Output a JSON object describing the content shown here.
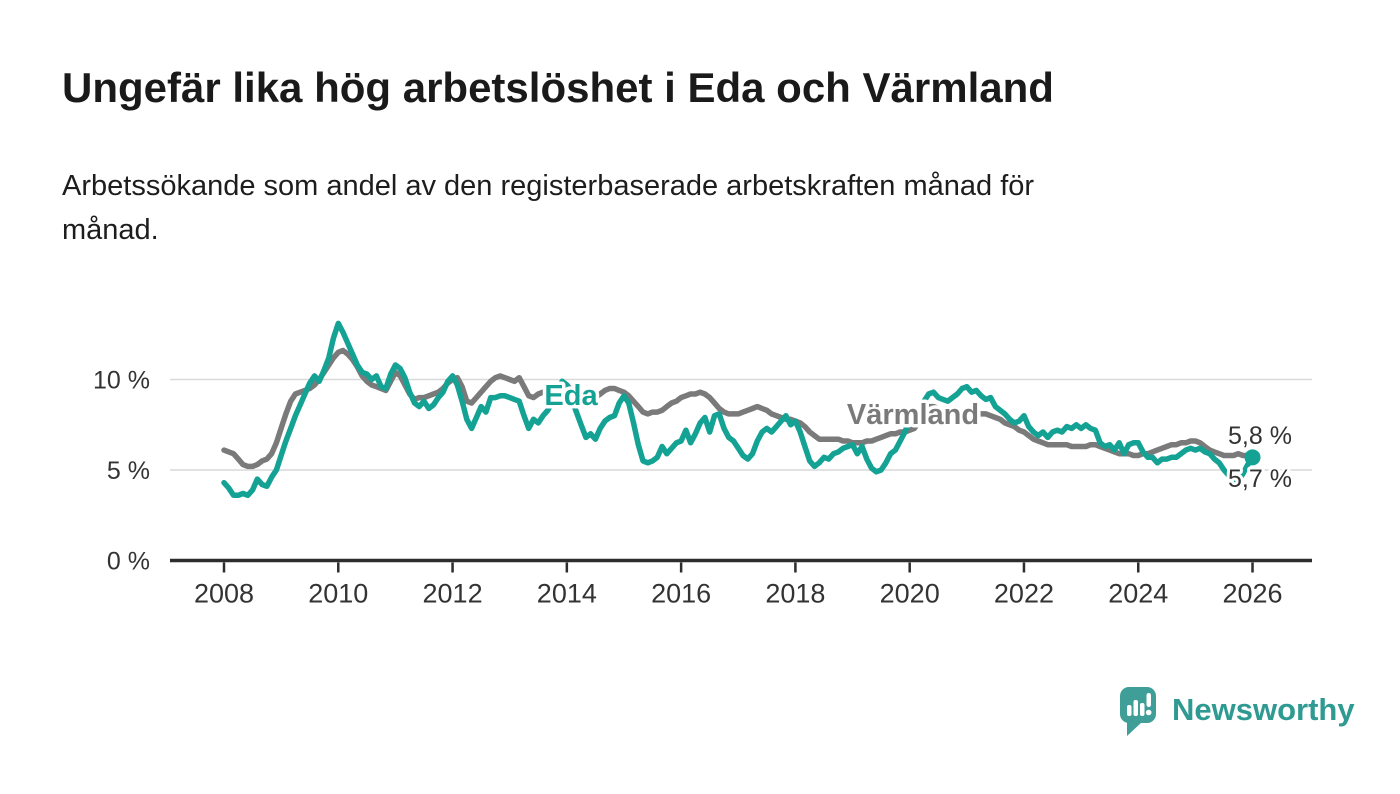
{
  "header": {
    "title": "Ungefär lika hög arbetslöshet i Eda och Värmland",
    "subtitle_line1": "Arbetssökande som andel av den registerbaserade arbetskraften månad för",
    "subtitle_line2": "månad."
  },
  "chart_data": {
    "type": "line",
    "x_start": {
      "year": 2008,
      "month": 1
    },
    "x_end": {
      "year": 2026,
      "month": 1
    },
    "points_per_year": 12,
    "x_tick_labels": [
      "2008",
      "2010",
      "2012",
      "2014",
      "2016",
      "2018",
      "2020",
      "2022",
      "2024",
      "2026"
    ],
    "y_tick_values": [
      0,
      5,
      10
    ],
    "y_tick_labels": [
      "0 %",
      "5 %",
      "10 %"
    ],
    "grid_values": [
      5,
      10
    ],
    "ylim": [
      0,
      13.5
    ],
    "legend_position": "inline-labels",
    "series": [
      {
        "name": "Värmland",
        "color": "#7a7a7a",
        "values": [
          6.1,
          6.0,
          5.9,
          5.6,
          5.3,
          5.2,
          5.2,
          5.3,
          5.5,
          5.6,
          5.9,
          6.5,
          7.3,
          8.1,
          8.8,
          9.2,
          9.3,
          9.4,
          9.5,
          9.7,
          10.0,
          10.4,
          10.8,
          11.2,
          11.5,
          11.6,
          11.4,
          11.1,
          10.7,
          10.2,
          9.9,
          9.7,
          9.6,
          9.5,
          9.4,
          9.9,
          10.4,
          10.2,
          9.7,
          9.2,
          8.9,
          9.0,
          9.0,
          9.1,
          9.2,
          9.3,
          9.5,
          9.8,
          10.0,
          10.1,
          9.6,
          8.8,
          8.7,
          9.0,
          9.3,
          9.6,
          9.9,
          10.1,
          10.2,
          10.1,
          10.0,
          9.9,
          10.1,
          9.6,
          9.1,
          9.0,
          9.2,
          9.3,
          9.4,
          9.5,
          9.6,
          9.7,
          9.7,
          9.4,
          9.1,
          8.9,
          8.7,
          8.8,
          9.0,
          9.2,
          9.4,
          9.5,
          9.5,
          9.4,
          9.3,
          9.1,
          8.8,
          8.5,
          8.2,
          8.1,
          8.2,
          8.2,
          8.3,
          8.5,
          8.7,
          8.8,
          9.0,
          9.1,
          9.2,
          9.2,
          9.3,
          9.2,
          9.0,
          8.7,
          8.4,
          8.2,
          8.1,
          8.1,
          8.1,
          8.2,
          8.3,
          8.4,
          8.5,
          8.4,
          8.3,
          8.1,
          8.0,
          7.9,
          7.8,
          7.8,
          7.7,
          7.6,
          7.4,
          7.1,
          6.9,
          6.7,
          6.7,
          6.7,
          6.7,
          6.7,
          6.6,
          6.6,
          6.5,
          6.5,
          6.5,
          6.6,
          6.6,
          6.7,
          6.8,
          6.9,
          7.0,
          7.0,
          7.1,
          7.1,
          7.2,
          7.3,
          7.7,
          8.2,
          8.5,
          8.5,
          8.4,
          8.2,
          8.1,
          8.0,
          8.0,
          8.1,
          8.2,
          8.2,
          8.2,
          8.1,
          8.1,
          8.0,
          7.9,
          7.8,
          7.6,
          7.5,
          7.4,
          7.2,
          7.1,
          6.9,
          6.7,
          6.6,
          6.5,
          6.4,
          6.4,
          6.4,
          6.4,
          6.4,
          6.3,
          6.3,
          6.3,
          6.3,
          6.4,
          6.4,
          6.3,
          6.2,
          6.1,
          6.0,
          5.9,
          5.9,
          5.9,
          5.8,
          5.8,
          5.9,
          5.9,
          6.0,
          6.1,
          6.2,
          6.3,
          6.4,
          6.4,
          6.5,
          6.5,
          6.6,
          6.6,
          6.5,
          6.3,
          6.1,
          6.0,
          5.9,
          5.8,
          5.8,
          5.8,
          5.9,
          5.8,
          5.8,
          5.8
        ]
      },
      {
        "name": "Eda",
        "color": "#14a294",
        "values": [
          4.3,
          4.0,
          3.6,
          3.6,
          3.7,
          3.6,
          3.9,
          4.5,
          4.2,
          4.1,
          4.6,
          5.0,
          5.8,
          6.6,
          7.3,
          8.0,
          8.6,
          9.2,
          9.8,
          10.2,
          9.9,
          10.5,
          11.2,
          12.3,
          13.1,
          12.6,
          12.0,
          11.4,
          10.8,
          10.4,
          10.3,
          10.0,
          10.2,
          9.6,
          9.5,
          10.3,
          10.8,
          10.6,
          10.1,
          9.3,
          8.7,
          8.5,
          8.8,
          8.4,
          8.6,
          9.0,
          9.3,
          9.9,
          10.2,
          9.7,
          8.8,
          7.8,
          7.3,
          7.9,
          8.5,
          8.2,
          9.0,
          9.0,
          9.1,
          9.1,
          9.0,
          8.9,
          8.8,
          8.0,
          7.3,
          7.8,
          7.6,
          8.0,
          8.3,
          8.8,
          9.3,
          9.9,
          9.7,
          8.9,
          8.2,
          7.5,
          6.8,
          7.0,
          6.7,
          7.3,
          7.7,
          7.9,
          8.0,
          8.7,
          9.1,
          8.7,
          7.6,
          6.4,
          5.5,
          5.4,
          5.5,
          5.7,
          6.3,
          5.9,
          6.2,
          6.5,
          6.6,
          7.2,
          6.5,
          7.0,
          7.6,
          7.9,
          7.1,
          8.0,
          8.1,
          7.3,
          6.8,
          6.6,
          6.2,
          5.8,
          5.6,
          5.9,
          6.6,
          7.1,
          7.3,
          7.1,
          7.4,
          7.7,
          8.0,
          7.5,
          7.7,
          7.1,
          6.3,
          5.5,
          5.2,
          5.4,
          5.7,
          5.6,
          5.9,
          6.0,
          6.2,
          6.3,
          6.4,
          5.9,
          6.3,
          5.6,
          5.1,
          4.9,
          5.0,
          5.4,
          5.9,
          6.1,
          6.6,
          7.1,
          7.8,
          7.9,
          8.3,
          8.8,
          9.2,
          9.3,
          9.0,
          8.9,
          8.8,
          9.0,
          9.2,
          9.5,
          9.6,
          9.3,
          9.4,
          9.1,
          8.9,
          9.0,
          8.5,
          8.3,
          8.1,
          7.8,
          7.6,
          7.7,
          8.0,
          7.4,
          7.1,
          6.9,
          7.1,
          6.8,
          7.1,
          7.2,
          7.1,
          7.4,
          7.3,
          7.5,
          7.3,
          7.5,
          7.3,
          7.2,
          6.5,
          6.3,
          6.4,
          6.1,
          6.5,
          5.9,
          6.4,
          6.5,
          6.5,
          6.0,
          5.7,
          5.7,
          5.4,
          5.6,
          5.6,
          5.7,
          5.7,
          5.9,
          6.1,
          6.2,
          6.1,
          6.2,
          6.0,
          5.9,
          5.6,
          5.4,
          5.0,
          4.7,
          4.5,
          4.4,
          4.8,
          5.3,
          5.7
        ]
      }
    ],
    "end_labels": [
      {
        "series": "Värmland",
        "text": "5,8 %",
        "value": 5.8
      },
      {
        "series": "Eda",
        "text": "5,7 %",
        "value": 5.7
      }
    ],
    "end_marker": {
      "series": "Eda",
      "value": 5.7
    }
  },
  "footer": {
    "brand": "Newsworthy"
  },
  "colors": {
    "eda_line": "#14a294",
    "varmland_line": "#7a7a7a",
    "axis": "#2d2d2d",
    "grid": "#d9d9d9",
    "tick_text": "#333333",
    "title_text": "#1a1a1a",
    "logo_bubble": "#3f9e97",
    "logo_text": "#2f9a92"
  }
}
